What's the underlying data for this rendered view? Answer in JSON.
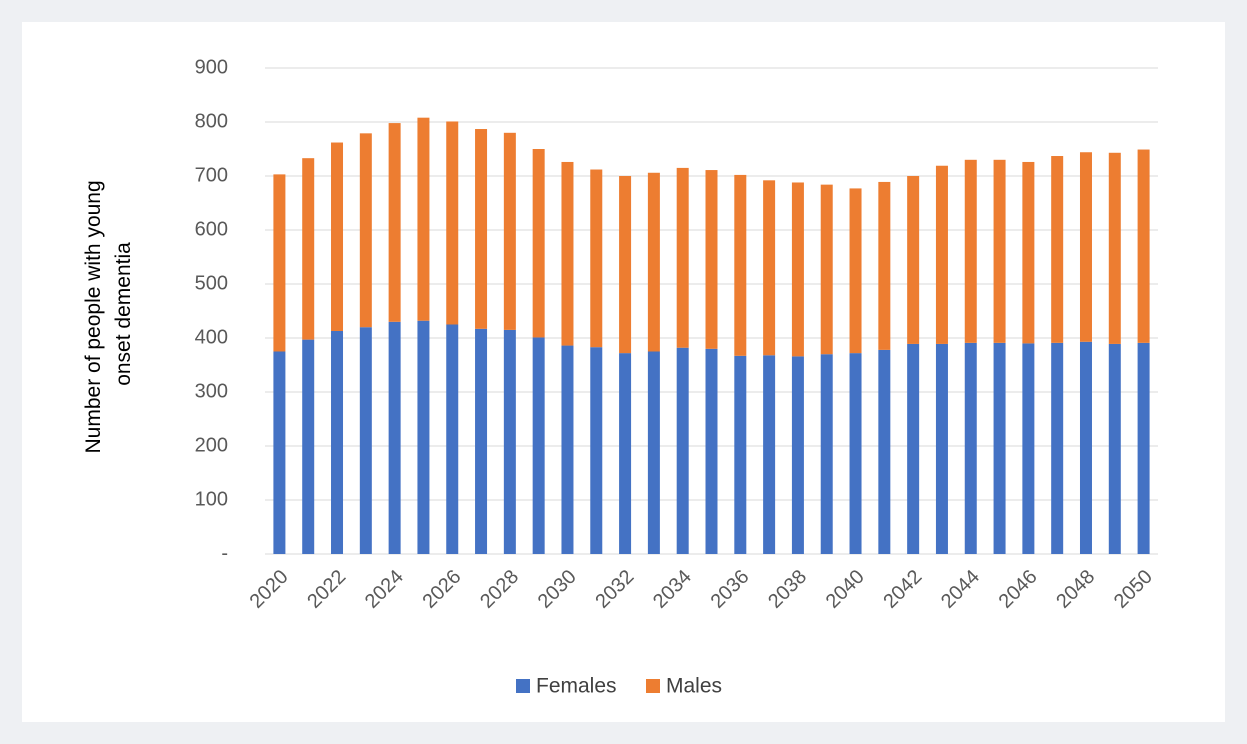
{
  "chart_data": {
    "type": "bar",
    "stacked": true,
    "y_label": [
      "Number of people with young",
      "onset dementia"
    ],
    "categories": [
      "2020",
      null,
      "2022",
      null,
      "2024",
      null,
      "2026",
      null,
      "2028",
      null,
      "2030",
      null,
      "2032",
      null,
      "2034",
      null,
      "2036",
      null,
      "2038",
      null,
      "2040",
      null,
      "2042",
      null,
      "2044",
      null,
      "2046",
      null,
      "2048",
      null,
      "2050"
    ],
    "series": [
      {
        "name": "Females",
        "color": "#4472c4",
        "values": [
          375,
          397,
          413,
          420,
          430,
          432,
          425,
          417,
          415,
          401,
          386,
          383,
          372,
          375,
          382,
          380,
          367,
          368,
          366,
          370,
          372,
          378,
          389,
          389,
          391,
          391,
          390,
          391,
          393,
          389,
          391
        ]
      },
      {
        "name": "Males",
        "color": "#ed7d31",
        "values": [
          328,
          336,
          349,
          359,
          368,
          376,
          376,
          370,
          365,
          349,
          340,
          329,
          328,
          331,
          333,
          331,
          335,
          324,
          322,
          314,
          305,
          311,
          311,
          330,
          339,
          339,
          336,
          346,
          351,
          354,
          358
        ]
      }
    ],
    "ylim": [
      0,
      900
    ],
    "yticks": [
      {
        "value": 0,
        "label": "-"
      },
      100,
      200,
      300,
      400,
      500,
      600,
      700,
      800,
      900
    ],
    "grid": true,
    "legend": "bottom"
  }
}
